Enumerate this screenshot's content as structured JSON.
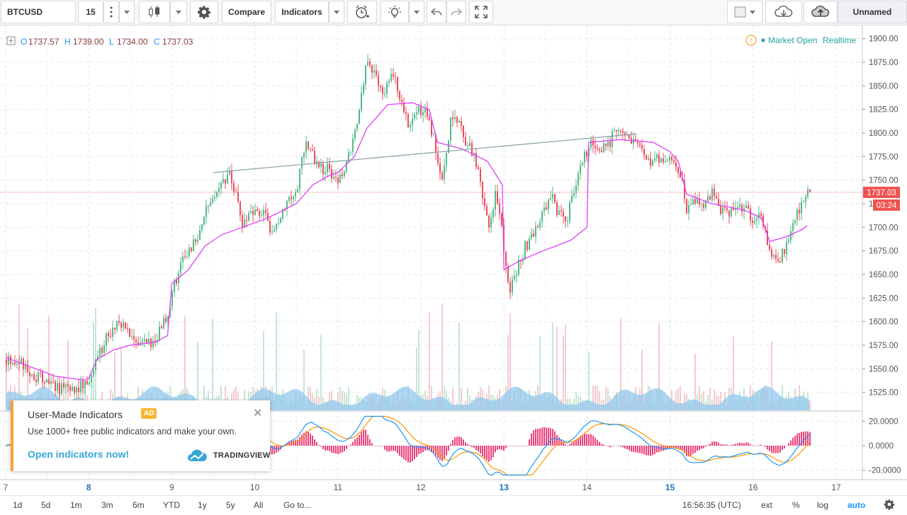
{
  "toolbar": {
    "symbol": "BTCUSD",
    "interval": "15",
    "compare_label": "Compare",
    "indicators_label": "Indicators",
    "layout_name": "Unnamed"
  },
  "legend": {
    "o_label": "O",
    "o_value": "1737.57",
    "h_label": "H",
    "h_value": "1739.00",
    "l_label": "L",
    "l_value": "1734.00",
    "c_label": "C",
    "c_value": "1737.03"
  },
  "market_status": {
    "icon": "exclamation-circle-icon",
    "text": "Market Open",
    "realtime": "Realtime",
    "color": "#26a69a"
  },
  "price_tag": {
    "value": "1737.03",
    "countdown": "03:24",
    "color": "#ef5350"
  },
  "ad": {
    "title": "User-Made Indicators",
    "badge": "AD",
    "description": "Use 1000+ free public indicators and make your own.",
    "link": "Open indicators now!",
    "brand": "TRADINGVIEW"
  },
  "bottombar": {
    "ranges": [
      "1d",
      "5d",
      "1m",
      "3m",
      "6m",
      "YTD",
      "1y",
      "5y",
      "All"
    ],
    "goto": "Go to...",
    "clock": "16:56:35 (UTC)",
    "ext": "ext",
    "percent": "%",
    "log": "log",
    "auto": "auto"
  },
  "chart_data": {
    "type": "candlestick",
    "symbol": "BTCUSD",
    "interval_minutes": 15,
    "x_tick_labels": [
      "7",
      "8",
      "9",
      "10",
      "11",
      "12",
      "13",
      "14",
      "15",
      "16",
      "17"
    ],
    "bold_x_ticks": [
      "8",
      "13",
      "15"
    ],
    "price_axis": {
      "ticks": [
        1525,
        1550,
        1575,
        1600,
        1625,
        1650,
        1675,
        1700,
        1725,
        1750,
        1775,
        1800,
        1825,
        1850,
        1875,
        1900
      ],
      "tick_labels": [
        "1525.00",
        "1550.00",
        "1575.00",
        "1600.00",
        "1625.00",
        "1650.00",
        "1675.00",
        "1700.00",
        "1725.00",
        "1750.00",
        "1775.00",
        "1800.00",
        "1825.00",
        "1850.00",
        "1875.00",
        "1900.00"
      ],
      "range": [
        1508,
        1908
      ]
    },
    "oscillator_axis": {
      "ticks": [
        -20,
        0,
        20
      ],
      "tick_labels": [
        "-20.0000",
        "0.0000",
        "20.0000"
      ],
      "range": [
        -26,
        26
      ]
    },
    "last_price": 1737.03,
    "price_path": [
      [
        7.0,
        1560
      ],
      [
        7.15,
        1558
      ],
      [
        7.3,
        1545
      ],
      [
        7.5,
        1535
      ],
      [
        7.7,
        1528
      ],
      [
        7.85,
        1530
      ],
      [
        8.0,
        1536
      ],
      [
        8.1,
        1560
      ],
      [
        8.2,
        1585
      ],
      [
        8.35,
        1600
      ],
      [
        8.45,
        1590
      ],
      [
        8.55,
        1575
      ],
      [
        8.7,
        1575
      ],
      [
        8.85,
        1590
      ],
      [
        8.95,
        1610
      ],
      [
        9.0,
        1635
      ],
      [
        9.1,
        1660
      ],
      [
        9.25,
        1680
      ],
      [
        9.4,
        1715
      ],
      [
        9.55,
        1745
      ],
      [
        9.7,
        1755
      ],
      [
        9.85,
        1700
      ],
      [
        9.95,
        1712
      ],
      [
        10.1,
        1718
      ],
      [
        10.2,
        1692
      ],
      [
        10.35,
        1725
      ],
      [
        10.5,
        1742
      ],
      [
        10.6,
        1790
      ],
      [
        10.75,
        1765
      ],
      [
        10.9,
        1760
      ],
      [
        11.0,
        1750
      ],
      [
        11.1,
        1765
      ],
      [
        11.2,
        1800
      ],
      [
        11.3,
        1850
      ],
      [
        11.35,
        1880
      ],
      [
        11.45,
        1860
      ],
      [
        11.55,
        1845
      ],
      [
        11.65,
        1865
      ],
      [
        11.75,
        1830
      ],
      [
        11.85,
        1810
      ],
      [
        11.95,
        1830
      ],
      [
        12.05,
        1820
      ],
      [
        12.15,
        1790
      ],
      [
        12.25,
        1745
      ],
      [
        12.35,
        1810
      ],
      [
        12.45,
        1812
      ],
      [
        12.55,
        1788
      ],
      [
        12.65,
        1770
      ],
      [
        12.75,
        1725
      ],
      [
        12.82,
        1700
      ],
      [
        12.9,
        1740
      ],
      [
        12.96,
        1700
      ],
      [
        13.05,
        1630
      ],
      [
        13.15,
        1655
      ],
      [
        13.25,
        1680
      ],
      [
        13.35,
        1690
      ],
      [
        13.45,
        1712
      ],
      [
        13.55,
        1735
      ],
      [
        13.65,
        1715
      ],
      [
        13.75,
        1710
      ],
      [
        13.85,
        1745
      ],
      [
        13.95,
        1775
      ],
      [
        14.05,
        1790
      ],
      [
        14.2,
        1785
      ],
      [
        14.3,
        1795
      ],
      [
        14.4,
        1803
      ],
      [
        14.5,
        1790
      ],
      [
        14.6,
        1785
      ],
      [
        14.7,
        1770
      ],
      [
        14.85,
        1772
      ],
      [
        15.0,
        1768
      ],
      [
        15.1,
        1760
      ],
      [
        15.2,
        1718
      ],
      [
        15.3,
        1730
      ],
      [
        15.4,
        1725
      ],
      [
        15.5,
        1740
      ],
      [
        15.6,
        1715
      ],
      [
        15.7,
        1718
      ],
      [
        15.8,
        1725
      ],
      [
        15.9,
        1720
      ],
      [
        16.0,
        1702
      ],
      [
        16.1,
        1712
      ],
      [
        16.2,
        1670
      ],
      [
        16.3,
        1660
      ],
      [
        16.45,
        1700
      ],
      [
        16.55,
        1722
      ],
      [
        16.65,
        1737
      ]
    ],
    "vwap_path": [
      [
        7.0,
        1562
      ],
      [
        7.3,
        1552
      ],
      [
        7.6,
        1542
      ],
      [
        7.95,
        1538
      ],
      [
        8.0,
        1540
      ],
      [
        8.1,
        1560
      ],
      [
        8.3,
        1570
      ],
      [
        8.5,
        1575
      ],
      [
        8.8,
        1578
      ],
      [
        8.95,
        1585
      ],
      [
        9.0,
        1640
      ],
      [
        9.2,
        1655
      ],
      [
        9.4,
        1680
      ],
      [
        9.6,
        1692
      ],
      [
        9.85,
        1700
      ],
      [
        10.1,
        1708
      ],
      [
        10.3,
        1716
      ],
      [
        10.5,
        1725
      ],
      [
        10.7,
        1745
      ],
      [
        10.9,
        1755
      ],
      [
        11.0,
        1758
      ],
      [
        11.2,
        1775
      ],
      [
        11.35,
        1805
      ],
      [
        11.6,
        1830
      ],
      [
        11.9,
        1832
      ],
      [
        12.1,
        1825
      ],
      [
        12.2,
        1790
      ],
      [
        12.5,
        1783
      ],
      [
        12.8,
        1770
      ],
      [
        12.98,
        1745
      ],
      [
        13.0,
        1655
      ],
      [
        13.2,
        1665
      ],
      [
        13.5,
        1676
      ],
      [
        13.8,
        1686
      ],
      [
        14.0,
        1700
      ],
      [
        14.02,
        1790
      ],
      [
        14.4,
        1793
      ],
      [
        14.8,
        1790
      ],
      [
        15.0,
        1780
      ],
      [
        15.1,
        1770
      ],
      [
        15.2,
        1735
      ],
      [
        15.5,
        1725
      ],
      [
        15.9,
        1718
      ],
      [
        16.1,
        1710
      ],
      [
        16.2,
        1685
      ],
      [
        16.4,
        1690
      ],
      [
        16.6,
        1698
      ],
      [
        16.65,
        1702
      ]
    ],
    "trendline": {
      "start": [
        9.5,
        1758
      ],
      "end": [
        14.6,
        1799
      ]
    },
    "series": [
      {
        "name": "candles",
        "up_color": "#53b987",
        "down_color": "#eb4d5c"
      },
      {
        "name": "vwap",
        "color": "#e040fb"
      },
      {
        "name": "volume",
        "color": "#91c8ee"
      },
      {
        "name": "macd_line",
        "color": "#2196f3"
      },
      {
        "name": "signal_line",
        "color": "#ff9800"
      },
      {
        "name": "histogram",
        "color": "#e91e63"
      }
    ],
    "grid": true
  }
}
